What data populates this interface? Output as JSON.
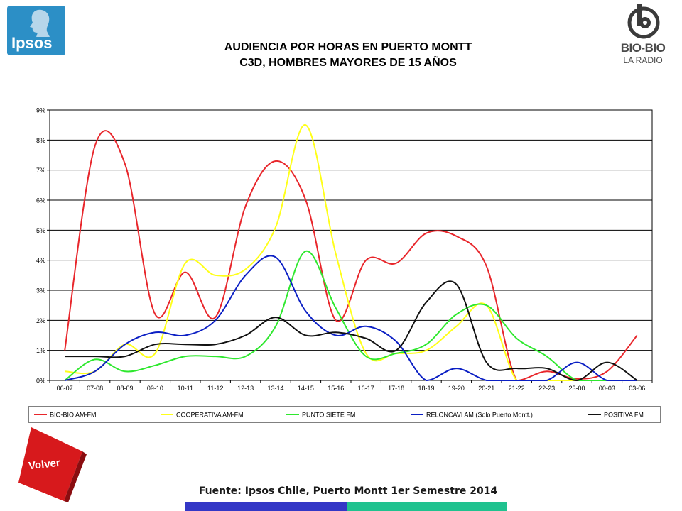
{
  "header": {
    "title_line1": "AUDIENCIA POR HORAS EN PUERTO MONTT",
    "title_line2": "C3D, HOMBRES MAYORES DE 15 AÑOS"
  },
  "logos": {
    "ipsos": "Ipsos",
    "biobio_name": "BIO-BIO",
    "biobio_tag": "LA RADIO"
  },
  "footer": {
    "source": "Fuente: Ipsos Chile, Puerto Montt 1er Semestre 2014",
    "volver_label": "Volver"
  },
  "colors": {
    "ipsos_brand": "#2c8fc6",
    "volver_red": "#d7191c",
    "footer_bar_blue": "#3437c6",
    "footer_bar_teal": "#20c28f"
  },
  "chart_data": {
    "type": "line",
    "title": "AUDIENCIA POR HORAS EN PUERTO MONTT C3D, HOMBRES MAYORES DE 15 AÑOS",
    "xlabel": "",
    "ylabel": "",
    "categories": [
      "06-07",
      "07-08",
      "08-09",
      "09-10",
      "10-11",
      "11-12",
      "12-13",
      "13-14",
      "14-15",
      "15-16",
      "16-17",
      "17-18",
      "18-19",
      "19-20",
      "20-21",
      "21-22",
      "22-23",
      "23-00",
      "00-03",
      "03-06"
    ],
    "yticks": [
      "0%",
      "1%",
      "2%",
      "3%",
      "4%",
      "5%",
      "6%",
      "7%",
      "8%",
      "9%"
    ],
    "ylim": [
      0,
      9
    ],
    "grid": true,
    "legend_position": "bottom",
    "series": [
      {
        "name": "BIO-BIO AM-FM",
        "color": "#e8262b",
        "values": [
          1.0,
          7.8,
          7.2,
          2.2,
          3.6,
          2.1,
          5.8,
          7.3,
          6.0,
          2.0,
          4.0,
          3.9,
          4.9,
          4.8,
          3.8,
          0.0,
          0.3,
          0.05,
          0.3,
          1.5
        ]
      },
      {
        "name": "COOPERATIVA AM-FM",
        "color": "#ffff19",
        "values": [
          0.3,
          0.3,
          1.2,
          0.9,
          3.9,
          3.5,
          3.7,
          5.1,
          8.5,
          4.2,
          0.9,
          0.9,
          1.0,
          1.8,
          2.5,
          0.0,
          0.0,
          0.0,
          0.0,
          0.0
        ]
      },
      {
        "name": "PUNTO SIETE FM",
        "color": "#2ee82e",
        "values": [
          0.0,
          0.7,
          0.3,
          0.5,
          0.8,
          0.8,
          0.8,
          1.8,
          4.3,
          2.4,
          0.8,
          0.9,
          1.2,
          2.2,
          2.5,
          1.4,
          0.8,
          0.0,
          0.0,
          0.0
        ]
      },
      {
        "name": "RELONCAVI AM (Solo Puerto Montt.)",
        "color": "#0b1fc4",
        "values": [
          0.0,
          0.3,
          1.2,
          1.6,
          1.5,
          2.0,
          3.5,
          4.1,
          2.3,
          1.5,
          1.8,
          1.3,
          0.0,
          0.4,
          0.0,
          0.0,
          0.0,
          0.6,
          0.0,
          0.0
        ]
      },
      {
        "name": "POSITIVA FM",
        "color": "#111111",
        "values": [
          0.8,
          0.8,
          0.8,
          1.2,
          1.2,
          1.2,
          1.5,
          2.1,
          1.5,
          1.6,
          1.4,
          1.0,
          2.6,
          3.2,
          0.6,
          0.4,
          0.4,
          0.0,
          0.6,
          0.0
        ]
      }
    ]
  }
}
